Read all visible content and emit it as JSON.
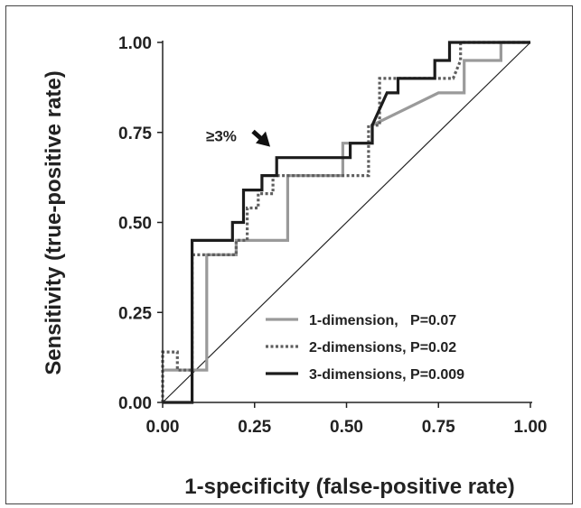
{
  "chart_data": {
    "type": "line",
    "xlabel": "1-specificity (false-positive rate)",
    "ylabel": "Sensitivity (true-positive rate)",
    "xlim": [
      0,
      1
    ],
    "ylim": [
      0,
      1
    ],
    "x_ticks": [
      "0.00",
      "0.25",
      "0.50",
      "0.75",
      "1.00"
    ],
    "y_ticks": [
      "0.00",
      "0.25",
      "0.50",
      "0.75",
      "1.00"
    ],
    "grid": false,
    "legend_position": "bottom-right",
    "reference_line": {
      "from": [
        0,
        0
      ],
      "to": [
        1,
        1
      ]
    },
    "annotation": {
      "text": "≥3%",
      "target": [
        0.29,
        0.67
      ]
    },
    "series": [
      {
        "name": "1-dimension,   P=0.07",
        "color": "#9a9a9a",
        "dash": "solid",
        "points": [
          [
            0,
            0.09
          ],
          [
            0.12,
            0.09
          ],
          [
            0.12,
            0.41
          ],
          [
            0.2,
            0.41
          ],
          [
            0.2,
            0.45
          ],
          [
            0.34,
            0.45
          ],
          [
            0.34,
            0.63
          ],
          [
            0.49,
            0.63
          ],
          [
            0.49,
            0.72
          ],
          [
            0.57,
            0.72
          ],
          [
            0.57,
            0.77
          ],
          [
            0.75,
            0.86
          ],
          [
            0.82,
            0.86
          ],
          [
            0.82,
            0.95
          ],
          [
            0.92,
            0.95
          ],
          [
            0.92,
            1.0
          ],
          [
            1.0,
            1.0
          ]
        ]
      },
      {
        "name": "2-dimensions, P=0.02",
        "color": "#5f5f5f",
        "dash": "dotted",
        "points": [
          [
            0,
            0.0
          ],
          [
            0,
            0.14
          ],
          [
            0.04,
            0.14
          ],
          [
            0.04,
            0.09
          ],
          [
            0.08,
            0.09
          ],
          [
            0.08,
            0.41
          ],
          [
            0.2,
            0.41
          ],
          [
            0.2,
            0.45
          ],
          [
            0.23,
            0.45
          ],
          [
            0.23,
            0.54
          ],
          [
            0.26,
            0.54
          ],
          [
            0.26,
            0.58
          ],
          [
            0.3,
            0.58
          ],
          [
            0.3,
            0.63
          ],
          [
            0.56,
            0.63
          ],
          [
            0.56,
            0.77
          ],
          [
            0.59,
            0.77
          ],
          [
            0.59,
            0.9
          ],
          [
            0.72,
            0.9
          ],
          [
            0.75,
            0.9
          ],
          [
            0.79,
            0.9
          ],
          [
            0.81,
            0.95
          ],
          [
            0.81,
            1.0
          ],
          [
            1.0,
            1.0
          ]
        ]
      },
      {
        "name": "3-dimensions, P=0.009",
        "color": "#1c1c1c",
        "dash": "solid",
        "points": [
          [
            0,
            0.0
          ],
          [
            0.08,
            0.0
          ],
          [
            0.08,
            0.45
          ],
          [
            0.19,
            0.45
          ],
          [
            0.19,
            0.5
          ],
          [
            0.22,
            0.5
          ],
          [
            0.22,
            0.59
          ],
          [
            0.27,
            0.59
          ],
          [
            0.27,
            0.63
          ],
          [
            0.31,
            0.63
          ],
          [
            0.31,
            0.68
          ],
          [
            0.51,
            0.68
          ],
          [
            0.51,
            0.72
          ],
          [
            0.57,
            0.72
          ],
          [
            0.57,
            0.77
          ],
          [
            0.61,
            0.86
          ],
          [
            0.64,
            0.86
          ],
          [
            0.64,
            0.9
          ],
          [
            0.74,
            0.9
          ],
          [
            0.74,
            0.95
          ],
          [
            0.78,
            0.95
          ],
          [
            0.78,
            1.0
          ],
          [
            1.0,
            1.0
          ]
        ]
      }
    ]
  }
}
